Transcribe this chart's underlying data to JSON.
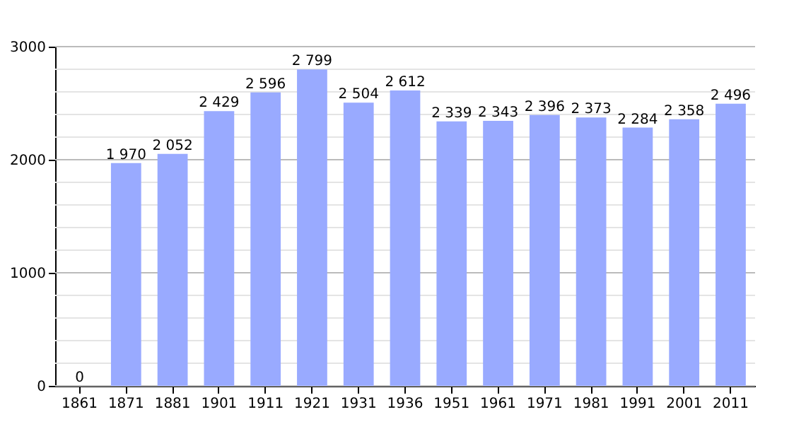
{
  "chart_data": {
    "type": "bar",
    "categories": [
      "1861",
      "1871",
      "1881",
      "1901",
      "1911",
      "1921",
      "1931",
      "1936",
      "1951",
      "1961",
      "1971",
      "1981",
      "1991",
      "2001",
      "2011"
    ],
    "values": [
      0,
      1970,
      2052,
      2429,
      2596,
      2799,
      2504,
      2612,
      2339,
      2343,
      2396,
      2373,
      2284,
      2358,
      2496
    ],
    "value_labels": [
      "0",
      "1 970",
      "2 052",
      "2 429",
      "2 596",
      "2 799",
      "2 504",
      "2 612",
      "2 339",
      "2 343",
      "2 396",
      "2 373",
      "2 284",
      "2 358",
      "2 496"
    ],
    "color": "#99aaff",
    "ylim": [
      0,
      3000
    ],
    "yticks": [
      0,
      {
        "value": 200,
        "label": null
      },
      {
        "value": 400,
        "label": null
      },
      {
        "value": 600,
        "label": null
      },
      {
        "value": 800,
        "label": null
      },
      1000,
      {
        "value": 1200,
        "label": null
      },
      {
        "value": 1400,
        "label": null
      },
      {
        "value": 1600,
        "label": null
      },
      {
        "value": 1800,
        "label": null
      },
      2000,
      {
        "value": 2200,
        "label": null
      },
      {
        "value": 2400,
        "label": null
      },
      {
        "value": 2600,
        "label": null
      },
      {
        "value": 2800,
        "label": null
      },
      3000
    ],
    "grid": "y"
  }
}
